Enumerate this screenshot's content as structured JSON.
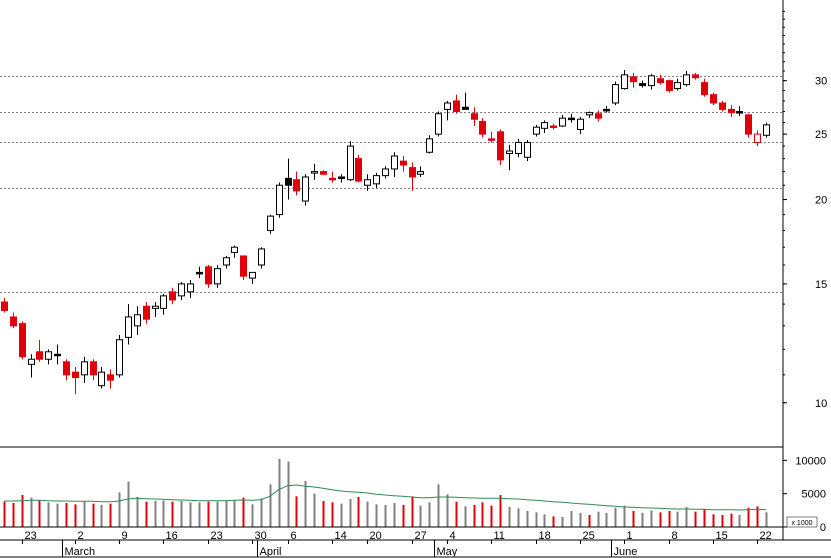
{
  "chart_data": {
    "type": "candlestick",
    "price_axis": {
      "scale": "log",
      "ylim": [
        8.6,
        39.5
      ],
      "ticks": [
        "30",
        "25",
        "20",
        "15",
        "10"
      ],
      "tick_values": [
        30,
        25,
        20,
        15,
        10
      ],
      "gridlines": [
        30.5,
        27.0,
        24.3,
        20.8,
        14.6
      ]
    },
    "volume_axis": {
      "ylim": [
        0,
        12000
      ],
      "ticks": [
        "10000",
        "5000",
        "0"
      ],
      "tick_values": [
        10000,
        5000,
        0
      ],
      "unit_label": "x 1000"
    },
    "x_labels": {
      "days": [
        "23",
        "2",
        "9",
        "16",
        "23",
        "30",
        "6",
        "14",
        "20",
        "27",
        "4",
        "11",
        "18",
        "25",
        "1",
        "8",
        "15",
        "22"
      ],
      "day_index": [
        2,
        8,
        13,
        18,
        23,
        28,
        32,
        37,
        41,
        46,
        50,
        55,
        60,
        65,
        70,
        75,
        80,
        85
      ],
      "months": [
        "March",
        "April",
        "May",
        "June"
      ],
      "month_index": [
        7,
        29,
        49,
        69
      ]
    },
    "candles": [
      {
        "o": 14.1,
        "h": 14.3,
        "l": 13.6,
        "c": 13.7,
        "color": "red"
      },
      {
        "o": 13.4,
        "h": 13.6,
        "l": 12.9,
        "c": 13.0,
        "color": "red"
      },
      {
        "o": 13.1,
        "h": 13.2,
        "l": 11.6,
        "c": 11.7,
        "color": "red"
      },
      {
        "o": 11.4,
        "h": 11.8,
        "l": 10.9,
        "c": 11.6,
        "color": "white"
      },
      {
        "o": 11.9,
        "h": 12.4,
        "l": 11.5,
        "c": 11.6,
        "color": "red"
      },
      {
        "o": 11.6,
        "h": 12.0,
        "l": 11.4,
        "c": 11.9,
        "color": "white"
      },
      {
        "o": 11.8,
        "h": 12.2,
        "l": 11.4,
        "c": 11.8,
        "color": "black"
      },
      {
        "o": 11.5,
        "h": 11.6,
        "l": 10.8,
        "c": 11.0,
        "color": "red"
      },
      {
        "o": 11.1,
        "h": 11.3,
        "l": 10.3,
        "c": 10.9,
        "color": "red"
      },
      {
        "o": 11.0,
        "h": 11.7,
        "l": 10.7,
        "c": 11.5,
        "color": "white"
      },
      {
        "o": 11.5,
        "h": 11.6,
        "l": 10.8,
        "c": 11.0,
        "color": "red"
      },
      {
        "o": 10.6,
        "h": 11.3,
        "l": 10.5,
        "c": 11.1,
        "color": "white"
      },
      {
        "o": 11.0,
        "h": 11.2,
        "l": 10.5,
        "c": 10.8,
        "color": "red"
      },
      {
        "o": 11.0,
        "h": 12.6,
        "l": 10.9,
        "c": 12.4,
        "color": "white"
      },
      {
        "o": 12.5,
        "h": 14.0,
        "l": 12.2,
        "c": 13.4,
        "color": "white"
      },
      {
        "o": 13.0,
        "h": 13.9,
        "l": 12.6,
        "c": 13.5,
        "color": "white"
      },
      {
        "o": 13.9,
        "h": 14.1,
        "l": 13.1,
        "c": 13.3,
        "color": "red"
      },
      {
        "o": 13.8,
        "h": 14.1,
        "l": 13.4,
        "c": 13.9,
        "color": "white"
      },
      {
        "o": 13.8,
        "h": 14.5,
        "l": 13.5,
        "c": 14.4,
        "color": "white"
      },
      {
        "o": 14.6,
        "h": 14.8,
        "l": 14.0,
        "c": 14.2,
        "color": "red"
      },
      {
        "o": 14.4,
        "h": 15.1,
        "l": 14.2,
        "c": 15.0,
        "color": "white"
      },
      {
        "o": 14.6,
        "h": 15.2,
        "l": 14.3,
        "c": 15.0,
        "color": "white"
      },
      {
        "o": 15.6,
        "h": 15.9,
        "l": 15.3,
        "c": 15.6,
        "color": "black"
      },
      {
        "o": 15.9,
        "h": 16.0,
        "l": 14.8,
        "c": 15.0,
        "color": "red"
      },
      {
        "o": 15.0,
        "h": 16.0,
        "l": 14.8,
        "c": 15.8,
        "color": "white"
      },
      {
        "o": 16.0,
        "h": 16.5,
        "l": 15.8,
        "c": 16.4,
        "color": "white"
      },
      {
        "o": 16.7,
        "h": 17.1,
        "l": 16.4,
        "c": 17.0,
        "color": "white"
      },
      {
        "o": 16.5,
        "h": 16.5,
        "l": 15.2,
        "c": 15.4,
        "color": "red"
      },
      {
        "o": 15.3,
        "h": 15.5,
        "l": 15.0,
        "c": 15.6,
        "color": "white"
      },
      {
        "o": 16.0,
        "h": 17.0,
        "l": 15.8,
        "c": 16.9,
        "color": "white"
      },
      {
        "o": 18.0,
        "h": 19.0,
        "l": 17.8,
        "c": 18.9,
        "color": "white"
      },
      {
        "o": 19.0,
        "h": 21.2,
        "l": 18.8,
        "c": 21.0,
        "color": "white"
      },
      {
        "o": 21.5,
        "h": 23.0,
        "l": 20.0,
        "c": 21.0,
        "color": "black"
      },
      {
        "o": 21.4,
        "h": 22.0,
        "l": 20.3,
        "c": 20.6,
        "color": "red"
      },
      {
        "o": 19.9,
        "h": 21.8,
        "l": 19.6,
        "c": 21.6,
        "color": "white"
      },
      {
        "o": 22.0,
        "h": 22.6,
        "l": 21.4,
        "c": 22.0,
        "color": "white"
      },
      {
        "o": 22.0,
        "h": 22.1,
        "l": 21.8,
        "c": 21.8,
        "color": "red"
      },
      {
        "o": 21.5,
        "h": 22.0,
        "l": 21.2,
        "c": 21.4,
        "color": "red"
      },
      {
        "o": 21.6,
        "h": 21.8,
        "l": 21.2,
        "c": 21.5,
        "color": "black"
      },
      {
        "o": 21.4,
        "h": 24.4,
        "l": 21.3,
        "c": 24.0,
        "color": "white"
      },
      {
        "o": 23.0,
        "h": 23.3,
        "l": 21.2,
        "c": 21.3,
        "color": "red"
      },
      {
        "o": 21.0,
        "h": 21.8,
        "l": 20.6,
        "c": 21.4,
        "color": "white"
      },
      {
        "o": 21.1,
        "h": 21.9,
        "l": 20.8,
        "c": 21.7,
        "color": "white"
      },
      {
        "o": 21.7,
        "h": 22.4,
        "l": 21.5,
        "c": 22.2,
        "color": "white"
      },
      {
        "o": 22.2,
        "h": 23.5,
        "l": 21.6,
        "c": 23.2,
        "color": "white"
      },
      {
        "o": 22.8,
        "h": 23.2,
        "l": 22.0,
        "c": 22.5,
        "color": "red"
      },
      {
        "o": 22.3,
        "h": 22.7,
        "l": 20.6,
        "c": 21.6,
        "color": "red"
      },
      {
        "o": 21.8,
        "h": 22.4,
        "l": 21.6,
        "c": 22.0,
        "color": "white"
      },
      {
        "o": 23.5,
        "h": 24.9,
        "l": 23.4,
        "c": 24.6,
        "color": "white"
      },
      {
        "o": 25.0,
        "h": 27.0,
        "l": 24.8,
        "c": 26.8,
        "color": "white"
      },
      {
        "o": 27.2,
        "h": 28.0,
        "l": 26.2,
        "c": 27.8,
        "color": "white"
      },
      {
        "o": 28.0,
        "h": 28.6,
        "l": 26.8,
        "c": 27.0,
        "color": "red"
      },
      {
        "o": 27.4,
        "h": 28.8,
        "l": 27.2,
        "c": 27.2,
        "color": "black"
      },
      {
        "o": 26.8,
        "h": 27.4,
        "l": 25.7,
        "c": 26.3,
        "color": "red"
      },
      {
        "o": 26.1,
        "h": 26.4,
        "l": 24.7,
        "c": 25.0,
        "color": "red"
      },
      {
        "o": 24.6,
        "h": 25.2,
        "l": 24.3,
        "c": 24.6,
        "color": "red"
      },
      {
        "o": 25.2,
        "h": 25.4,
        "l": 22.5,
        "c": 22.9,
        "color": "red"
      },
      {
        "o": 23.4,
        "h": 24.1,
        "l": 22.1,
        "c": 23.6,
        "color": "white"
      },
      {
        "o": 23.4,
        "h": 24.6,
        "l": 23.1,
        "c": 24.3,
        "color": "white"
      },
      {
        "o": 23.1,
        "h": 24.5,
        "l": 22.8,
        "c": 24.3,
        "color": "white"
      },
      {
        "o": 25.0,
        "h": 25.8,
        "l": 24.8,
        "c": 25.6,
        "color": "white"
      },
      {
        "o": 25.5,
        "h": 26.2,
        "l": 25.1,
        "c": 26.0,
        "color": "white"
      },
      {
        "o": 25.7,
        "h": 25.9,
        "l": 25.4,
        "c": 25.6,
        "color": "red"
      },
      {
        "o": 25.7,
        "h": 26.7,
        "l": 25.6,
        "c": 26.4,
        "color": "white"
      },
      {
        "o": 26.4,
        "h": 26.8,
        "l": 26.0,
        "c": 26.3,
        "color": "black"
      },
      {
        "o": 25.4,
        "h": 26.5,
        "l": 25.0,
        "c": 26.3,
        "color": "white"
      },
      {
        "o": 26.7,
        "h": 27.0,
        "l": 26.4,
        "c": 26.9,
        "color": "white"
      },
      {
        "o": 26.8,
        "h": 27.1,
        "l": 26.1,
        "c": 26.4,
        "color": "red"
      },
      {
        "o": 27.2,
        "h": 27.5,
        "l": 26.9,
        "c": 27.2,
        "color": "black"
      },
      {
        "o": 27.8,
        "h": 29.9,
        "l": 27.6,
        "c": 29.6,
        "color": "white"
      },
      {
        "o": 29.2,
        "h": 31.1,
        "l": 29.1,
        "c": 30.6,
        "color": "white"
      },
      {
        "o": 30.4,
        "h": 30.8,
        "l": 29.3,
        "c": 29.9,
        "color": "red"
      },
      {
        "o": 29.5,
        "h": 30.0,
        "l": 29.3,
        "c": 29.7,
        "color": "black"
      },
      {
        "o": 29.5,
        "h": 30.7,
        "l": 29.1,
        "c": 30.5,
        "color": "white"
      },
      {
        "o": 30.2,
        "h": 30.6,
        "l": 29.6,
        "c": 29.8,
        "color": "red"
      },
      {
        "o": 30.0,
        "h": 30.1,
        "l": 28.8,
        "c": 29.0,
        "color": "red"
      },
      {
        "o": 29.2,
        "h": 30.2,
        "l": 29.0,
        "c": 29.8,
        "color": "white"
      },
      {
        "o": 29.6,
        "h": 31.0,
        "l": 29.4,
        "c": 30.6,
        "color": "white"
      },
      {
        "o": 30.6,
        "h": 30.8,
        "l": 30.1,
        "c": 30.3,
        "color": "red"
      },
      {
        "o": 29.8,
        "h": 30.2,
        "l": 28.4,
        "c": 28.6,
        "color": "red"
      },
      {
        "o": 28.6,
        "h": 28.8,
        "l": 27.6,
        "c": 27.8,
        "color": "red"
      },
      {
        "o": 27.8,
        "h": 28.0,
        "l": 27.0,
        "c": 27.2,
        "color": "red"
      },
      {
        "o": 27.2,
        "h": 27.6,
        "l": 26.5,
        "c": 26.9,
        "color": "red"
      },
      {
        "o": 27.0,
        "h": 27.5,
        "l": 26.6,
        "c": 27.0,
        "color": "black"
      },
      {
        "o": 26.7,
        "h": 26.8,
        "l": 24.7,
        "c": 25.0,
        "color": "red"
      },
      {
        "o": 24.3,
        "h": 25.3,
        "l": 24.0,
        "c": 25.0,
        "color": "hollow-red"
      },
      {
        "o": 24.9,
        "h": 26.0,
        "l": 24.7,
        "c": 25.8,
        "color": "white"
      }
    ],
    "volume": [
      {
        "v": 3800,
        "color": "red"
      },
      {
        "v": 3600,
        "color": "red"
      },
      {
        "v": 4800,
        "color": "red"
      },
      {
        "v": 4400,
        "color": "gray"
      },
      {
        "v": 4000,
        "color": "red"
      },
      {
        "v": 3700,
        "color": "gray"
      },
      {
        "v": 3500,
        "color": "gray"
      },
      {
        "v": 3600,
        "color": "red"
      },
      {
        "v": 3400,
        "color": "red"
      },
      {
        "v": 3800,
        "color": "gray"
      },
      {
        "v": 3500,
        "color": "red"
      },
      {
        "v": 3300,
        "color": "gray"
      },
      {
        "v": 3500,
        "color": "red"
      },
      {
        "v": 5200,
        "color": "gray"
      },
      {
        "v": 6800,
        "color": "gray"
      },
      {
        "v": 4500,
        "color": "gray"
      },
      {
        "v": 3800,
        "color": "red"
      },
      {
        "v": 3900,
        "color": "gray"
      },
      {
        "v": 4000,
        "color": "gray"
      },
      {
        "v": 3800,
        "color": "red"
      },
      {
        "v": 3900,
        "color": "gray"
      },
      {
        "v": 3700,
        "color": "gray"
      },
      {
        "v": 3700,
        "color": "gray"
      },
      {
        "v": 3800,
        "color": "red"
      },
      {
        "v": 3800,
        "color": "gray"
      },
      {
        "v": 3900,
        "color": "gray"
      },
      {
        "v": 4000,
        "color": "gray"
      },
      {
        "v": 4400,
        "color": "red"
      },
      {
        "v": 3400,
        "color": "gray"
      },
      {
        "v": 4300,
        "color": "gray"
      },
      {
        "v": 6400,
        "color": "gray"
      },
      {
        "v": 10200,
        "color": "gray"
      },
      {
        "v": 9800,
        "color": "gray"
      },
      {
        "v": 4600,
        "color": "red"
      },
      {
        "v": 6900,
        "color": "gray"
      },
      {
        "v": 5000,
        "color": "gray"
      },
      {
        "v": 3900,
        "color": "red"
      },
      {
        "v": 3700,
        "color": "red"
      },
      {
        "v": 3500,
        "color": "gray"
      },
      {
        "v": 4200,
        "color": "gray"
      },
      {
        "v": 4500,
        "color": "red"
      },
      {
        "v": 3800,
        "color": "gray"
      },
      {
        "v": 3400,
        "color": "gray"
      },
      {
        "v": 3300,
        "color": "gray"
      },
      {
        "v": 3600,
        "color": "gray"
      },
      {
        "v": 3300,
        "color": "red"
      },
      {
        "v": 4600,
        "color": "red"
      },
      {
        "v": 3200,
        "color": "gray"
      },
      {
        "v": 3700,
        "color": "gray"
      },
      {
        "v": 6400,
        "color": "gray"
      },
      {
        "v": 4900,
        "color": "gray"
      },
      {
        "v": 3800,
        "color": "red"
      },
      {
        "v": 3100,
        "color": "gray"
      },
      {
        "v": 3300,
        "color": "red"
      },
      {
        "v": 3700,
        "color": "red"
      },
      {
        "v": 3200,
        "color": "red"
      },
      {
        "v": 4800,
        "color": "red"
      },
      {
        "v": 3000,
        "color": "gray"
      },
      {
        "v": 2800,
        "color": "gray"
      },
      {
        "v": 2400,
        "color": "gray"
      },
      {
        "v": 2200,
        "color": "gray"
      },
      {
        "v": 1900,
        "color": "gray"
      },
      {
        "v": 1600,
        "color": "red"
      },
      {
        "v": 1500,
        "color": "gray"
      },
      {
        "v": 2400,
        "color": "gray"
      },
      {
        "v": 2100,
        "color": "gray"
      },
      {
        "v": 1800,
        "color": "red"
      },
      {
        "v": 2300,
        "color": "gray"
      },
      {
        "v": 2100,
        "color": "gray"
      },
      {
        "v": 2900,
        "color": "gray"
      },
      {
        "v": 3200,
        "color": "gray"
      },
      {
        "v": 2400,
        "color": "red"
      },
      {
        "v": 2100,
        "color": "gray"
      },
      {
        "v": 2500,
        "color": "gray"
      },
      {
        "v": 2200,
        "color": "red"
      },
      {
        "v": 2400,
        "color": "red"
      },
      {
        "v": 2300,
        "color": "gray"
      },
      {
        "v": 3000,
        "color": "gray"
      },
      {
        "v": 2300,
        "color": "red"
      },
      {
        "v": 2700,
        "color": "red"
      },
      {
        "v": 1900,
        "color": "red"
      },
      {
        "v": 1800,
        "color": "red"
      },
      {
        "v": 2000,
        "color": "red"
      },
      {
        "v": 1800,
        "color": "gray"
      },
      {
        "v": 2900,
        "color": "red"
      },
      {
        "v": 3100,
        "color": "red"
      },
      {
        "v": 2200,
        "color": "gray"
      }
    ],
    "volume_ma": [
      3900,
      3900,
      3950,
      4000,
      4000,
      3950,
      3900,
      3900,
      3850,
      3850,
      3850,
      3800,
      3800,
      3900,
      4200,
      4300,
      4250,
      4200,
      4150,
      4100,
      4050,
      4000,
      3950,
      3950,
      3950,
      3950,
      4000,
      4050,
      4000,
      4100,
      4600,
      5600,
      6200,
      6300,
      6100,
      6000,
      5800,
      5600,
      5400,
      5300,
      5200,
      5100,
      4900,
      4800,
      4700,
      4600,
      4500,
      4400,
      4400,
      4500,
      4500,
      4450,
      4400,
      4350,
      4300,
      4300,
      4300,
      4250,
      4200,
      4100,
      4000,
      3900,
      3800,
      3700,
      3600,
      3500,
      3400,
      3300,
      3200,
      3100,
      3000,
      2950,
      2900,
      2850,
      2800,
      2750,
      2700,
      2700,
      2650,
      2650,
      2600,
      2600,
      2600,
      2550,
      2600,
      2650,
      2600
    ],
    "colors": {
      "red": "#e0000c",
      "black": "#000000",
      "white": "#ffffff",
      "gray": "#808080",
      "ma_line": "#2e8b57"
    }
  }
}
